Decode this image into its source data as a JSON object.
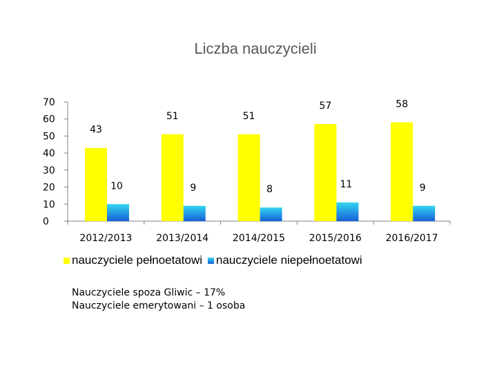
{
  "chart_data": {
    "type": "bar",
    "title": "Liczba nauczycieli",
    "categories": [
      "2012/2013",
      "2013/2014",
      "2014/2015",
      "2015/2016",
      "2016/2017"
    ],
    "series": [
      {
        "name": "nauczyciele pełnoetatowi",
        "values": [
          43,
          51,
          51,
          57,
          58
        ],
        "color": "#ffff00"
      },
      {
        "name": "nauczyciele niepełnoetatowi",
        "values": [
          10,
          9,
          8,
          11,
          9
        ],
        "color": "#1e90e0"
      }
    ],
    "ylim": [
      0,
      70
    ],
    "yticks": [
      0,
      10,
      20,
      30,
      40,
      50,
      60,
      70
    ],
    "grid": false,
    "legend": "bottom",
    "xlabel": "",
    "ylabel": ""
  },
  "notes": {
    "line1": "Nauczyciele spoza Gliwic – 17%",
    "line2": "Nauczyciele emerytowani – 1 osoba"
  }
}
